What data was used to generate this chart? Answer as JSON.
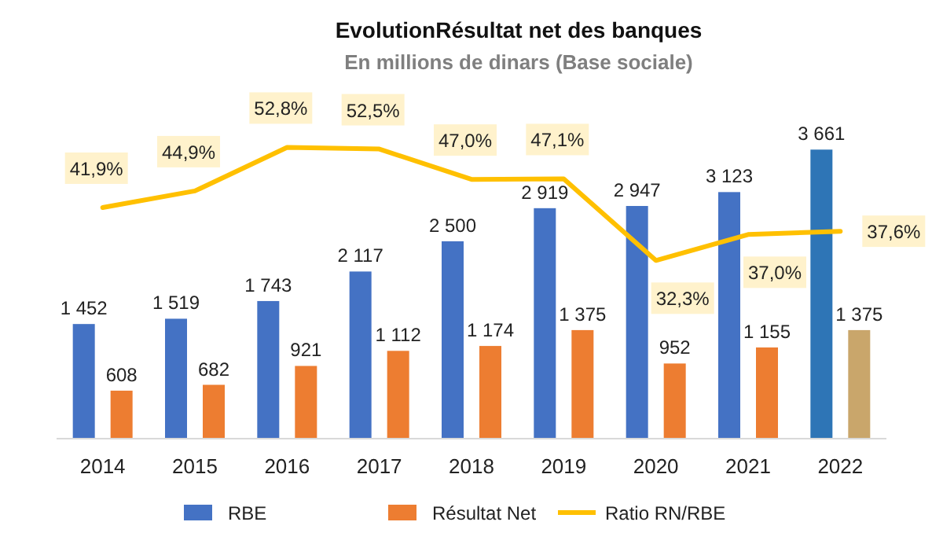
{
  "chart_data": {
    "type": "bar",
    "title": "EvolutionRésultat net des banques",
    "subtitle": "En millions de dinars (Base sociale)",
    "categories": [
      "2014",
      "2015",
      "2016",
      "2017",
      "2018",
      "2019",
      "2020",
      "2021",
      "2022"
    ],
    "series": [
      {
        "name": "RBE",
        "color": "#4472c4",
        "colors": [
          "#4472c4",
          "#4472c4",
          "#4472c4",
          "#4472c4",
          "#4472c4",
          "#4472c4",
          "#4472c4",
          "#4472c4",
          "#2e75b6"
        ],
        "values": [
          1452,
          1519,
          1743,
          2117,
          2500,
          2919,
          2947,
          3123,
          3661
        ],
        "value_labels": [
          "1 452",
          "1 519",
          "1 743",
          "2 117",
          "2 500",
          "2 919",
          "2 947",
          "3 123",
          "3 661"
        ]
      },
      {
        "name": "Résultat Net",
        "color": "#ed7d31",
        "colors": [
          "#ed7d31",
          "#ed7d31",
          "#ed7d31",
          "#ed7d31",
          "#ed7d31",
          "#ed7d31",
          "#ed7d31",
          "#ed7d31",
          "#c9a66b"
        ],
        "values": [
          608,
          682,
          921,
          1112,
          1174,
          1375,
          952,
          1155,
          1375
        ],
        "value_labels": [
          "608",
          "682",
          "921",
          "1 112",
          "1 174",
          "1 375",
          "952",
          "1 155",
          "1 375"
        ]
      },
      {
        "name": "Ratio RN/RBE",
        "type": "line",
        "axis": "y2",
        "color": "#ffc000",
        "values": [
          41.9,
          44.9,
          52.8,
          52.5,
          47.0,
          47.1,
          32.3,
          37.0,
          37.6
        ],
        "value_labels": [
          "41,9%",
          "44,9%",
          "52,8%",
          "52,5%",
          "47,0%",
          "47,1%",
          "32,3%",
          "37,0%",
          "37,6%"
        ]
      }
    ],
    "tick_labels": "x",
    "legend": "bottom"
  }
}
